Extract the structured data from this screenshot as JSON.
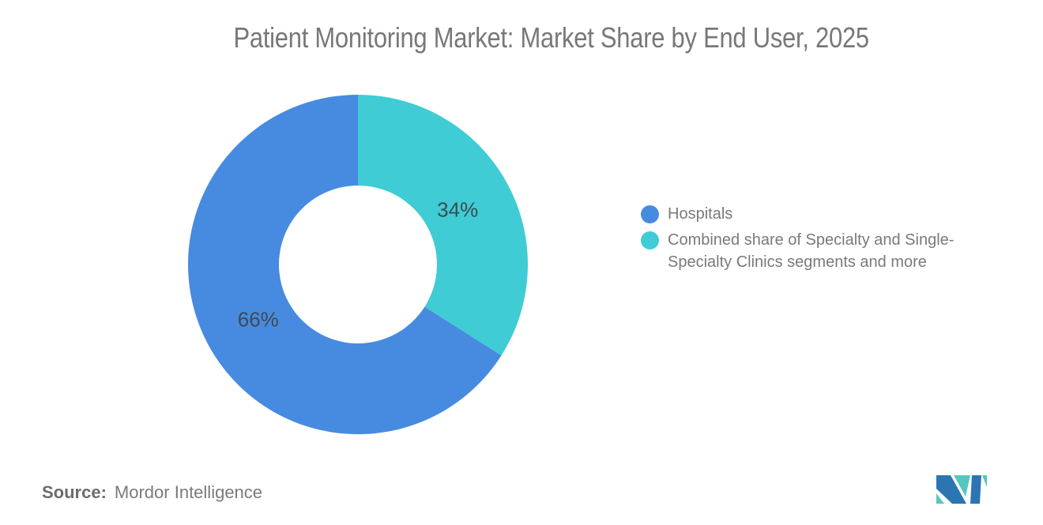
{
  "chart_data": {
    "type": "pie",
    "subtype": "donut",
    "title": "Patient Monitoring Market: Market Share by End User, 2025",
    "segments": [
      {
        "label": "Hospitals",
        "value": 66,
        "display": "66%",
        "color": "#478be0"
      },
      {
        "label": "Combined share of Specialty and Single-Specialty Clinics segments and more",
        "value": 34,
        "display": "34%",
        "color": "#3fccd4"
      }
    ],
    "start_position": "12-oclock",
    "second_segment_direction": "clockwise",
    "legend_position": "right",
    "label_color": "#3e4a52",
    "background": "#ffffff"
  },
  "legend": {
    "items": [
      {
        "label": "Hospitals",
        "color": "#478be0"
      },
      {
        "label": "Combined share of Specialty and Single-Specialty Clinics segments and more",
        "color": "#3fccd4"
      }
    ]
  },
  "source": {
    "prefix": "Source:",
    "text": "Mordor Intelligence"
  },
  "logo": {
    "name": "mordor-intelligence-logo",
    "blue": "#2b76b2",
    "teal": "#56c6c2"
  }
}
